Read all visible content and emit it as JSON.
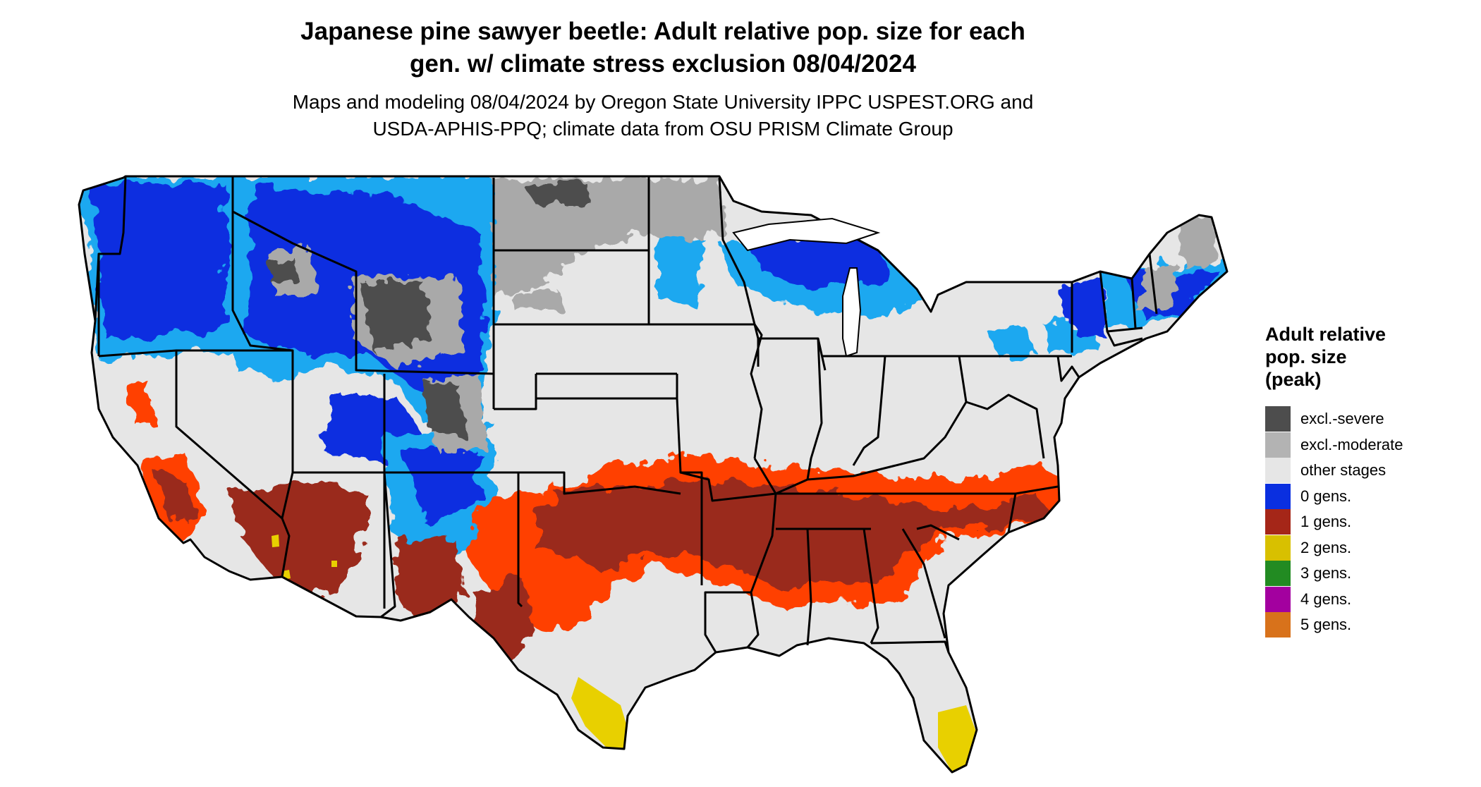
{
  "title_line1": "Japanese pine sawyer beetle: Adult relative pop. size for each",
  "title_line2": "gen. w/ climate stress exclusion 08/04/2024",
  "subtitle_line1": "Maps and modeling 08/04/2024 by Oregon State University IPPC USPEST.ORG and",
  "subtitle_line2": "USDA-APHIS-PPQ; climate data from OSU PRISM Climate Group",
  "legend": {
    "title_line1": "Adult relative",
    "title_line2": "pop. size",
    "title_line3": "(peak)",
    "items": [
      {
        "label": "excl.-severe",
        "color": "#4d4d4d"
      },
      {
        "label": "excl.-moderate",
        "color": "#b3b3b3"
      },
      {
        "label": "other stages",
        "color": "#e6e6e6"
      },
      {
        "label": "0 gens.",
        "color": "#0a2fe0"
      },
      {
        "label": "1 gens.",
        "color": "#a52618"
      },
      {
        "label": "2 gens.",
        "color": "#d8c000"
      },
      {
        "label": "3 gens.",
        "color": "#228b22"
      },
      {
        "label": "4 gens.",
        "color": "#a3009f"
      },
      {
        "label": "5 gens.",
        "color": "#d8721b"
      }
    ]
  },
  "map_colors": {
    "base": "#e6e6e6",
    "excl_severe": "#4d4d4d",
    "excl_moderate": "#a9a9a9",
    "zero_gen": "#0a2fe0",
    "zero_gen_light": "#1ea8f0",
    "one_gen": "#9a2b1e",
    "one_gen_edge": "#ff4000",
    "two_gen": "#e8d000",
    "border": "#000000"
  }
}
